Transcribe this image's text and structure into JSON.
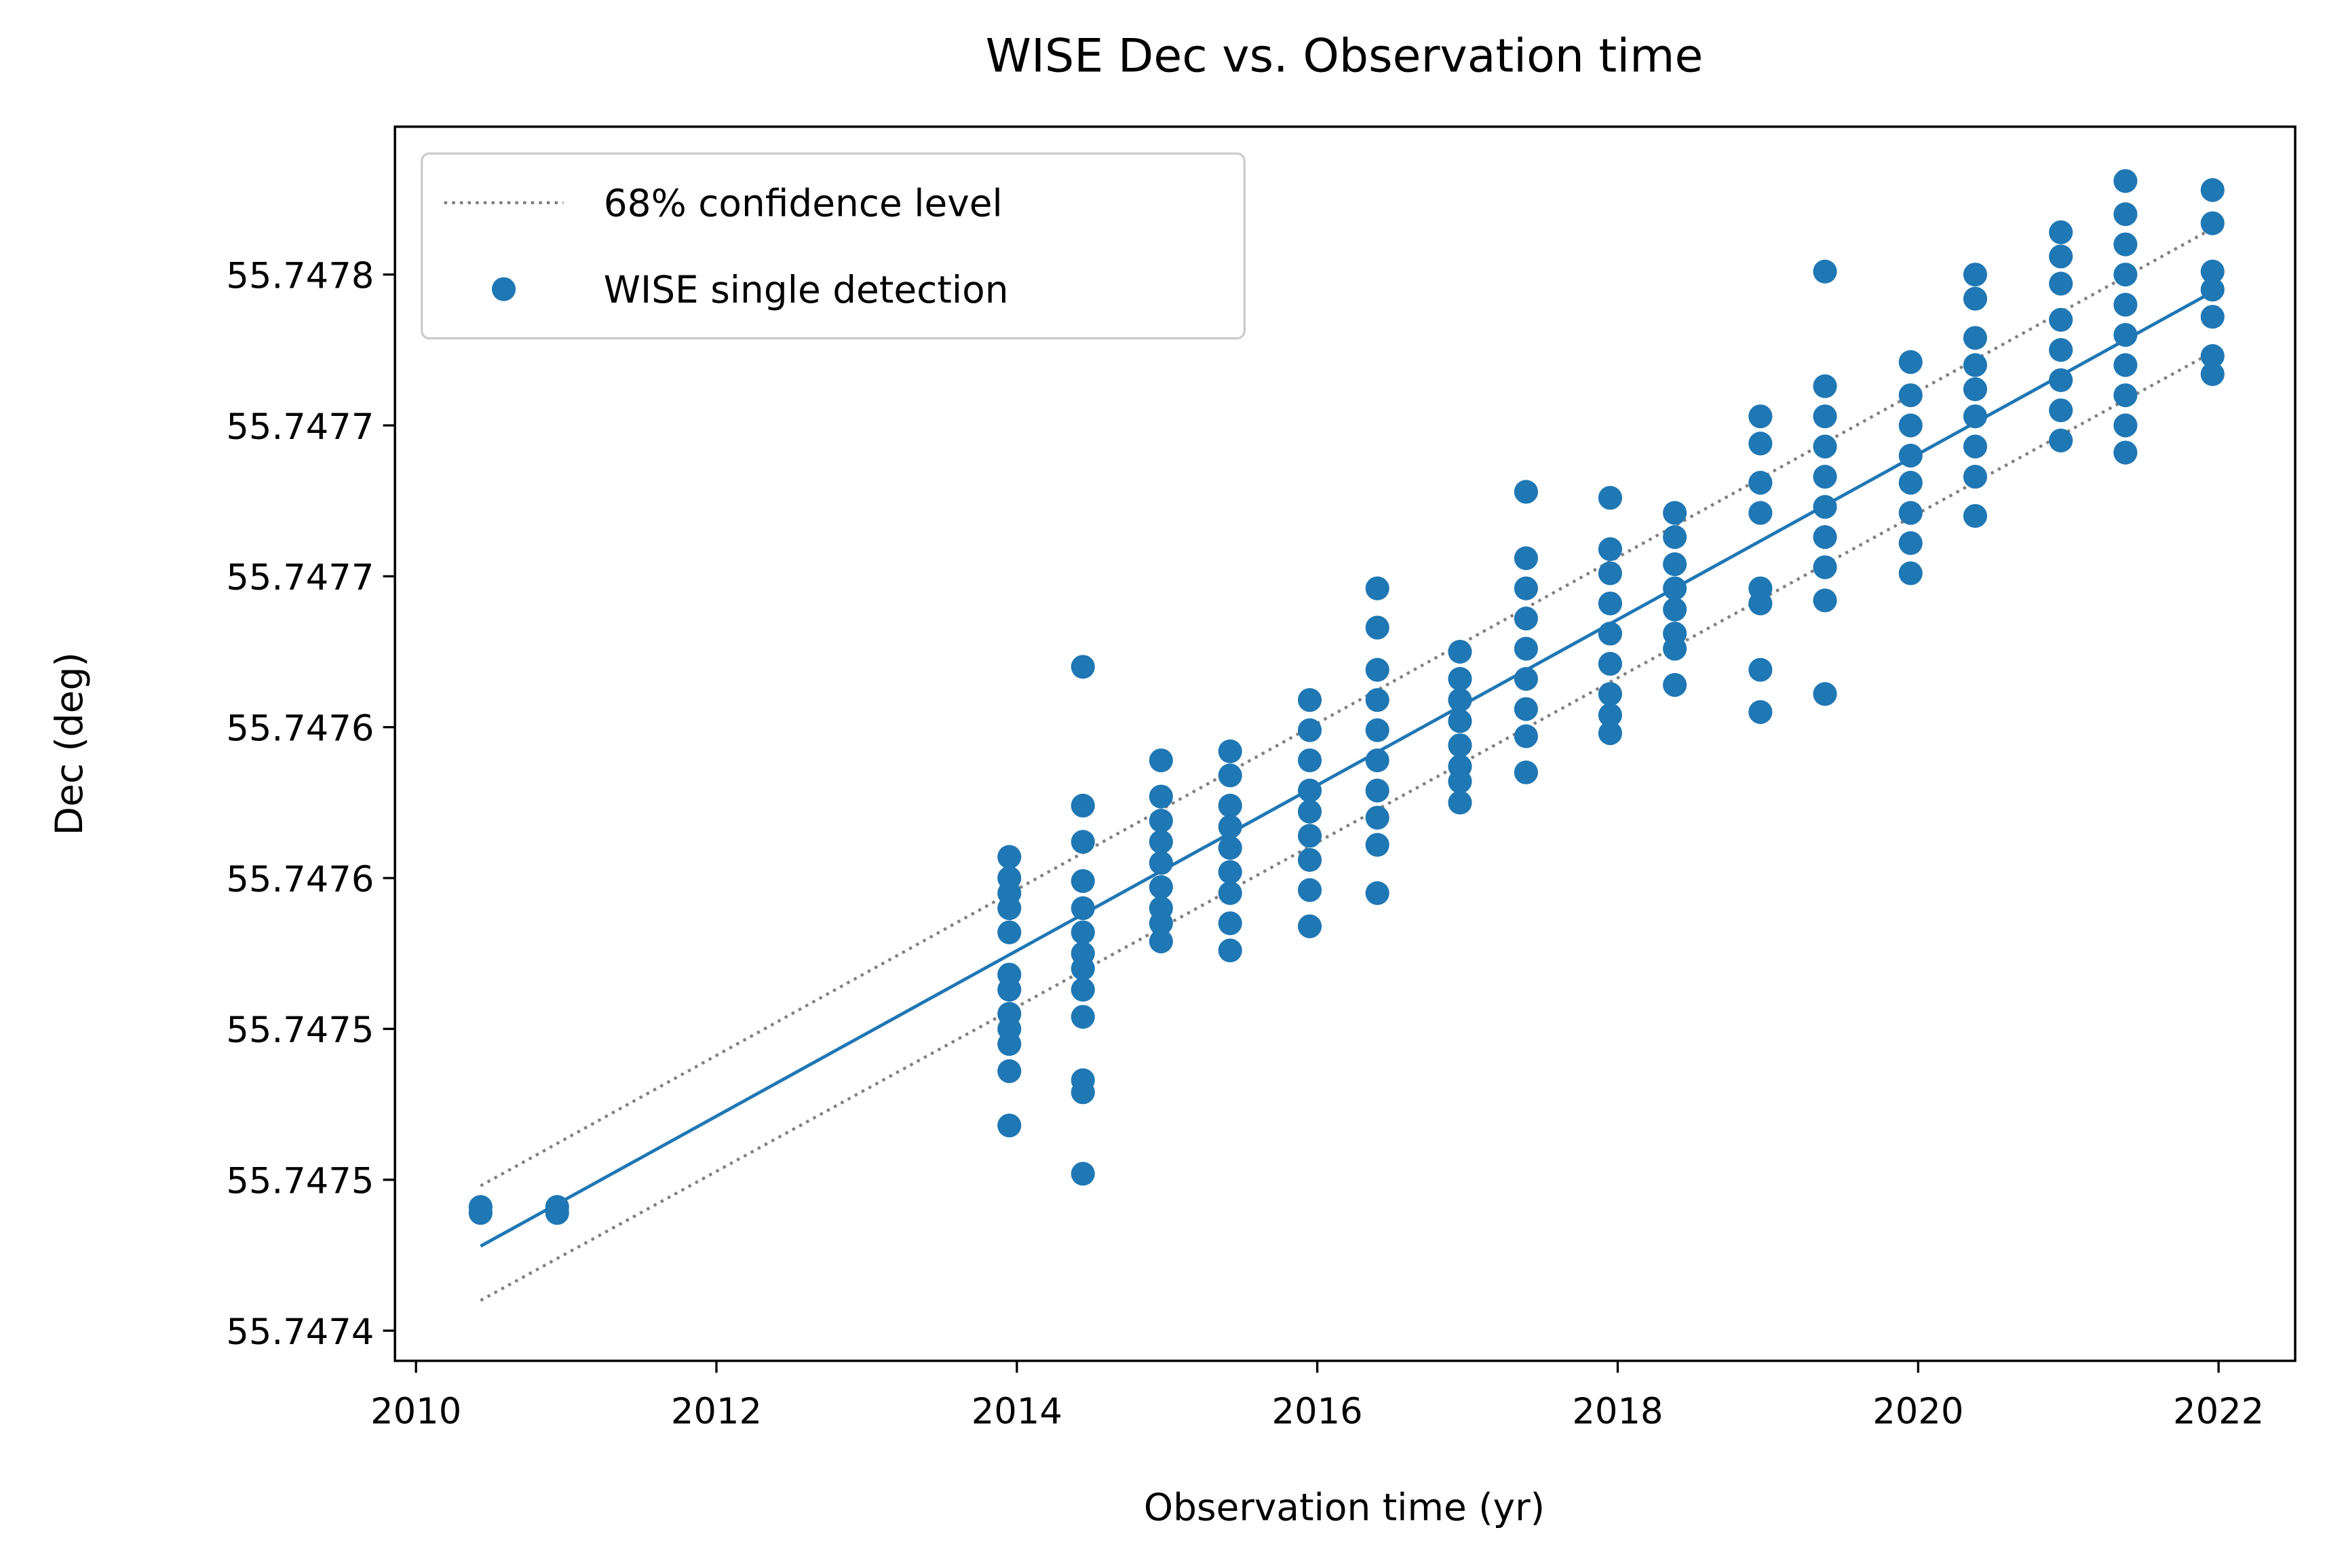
{
  "chart_data": {
    "type": "scatter",
    "title": "WISE Dec vs. Observation time",
    "x_label": "Observation time (yr)",
    "y_label": "Dec (deg)",
    "xlim": [
      2009.86,
      2022.51
    ],
    "ylim": [
      55.74739,
      55.747799
    ],
    "xticks": [
      2010,
      2012,
      2014,
      2016,
      2018,
      2020,
      2022
    ],
    "yticks": [
      {
        "value": 55.7474,
        "label": "55.7474"
      },
      {
        "value": 55.74745,
        "label": "55.7475"
      },
      {
        "value": 55.7475,
        "label": "55.7475"
      },
      {
        "value": 55.74755,
        "label": "55.7476"
      },
      {
        "value": 55.7476,
        "label": "55.7476"
      },
      {
        "value": 55.74765,
        "label": "55.7477"
      },
      {
        "value": 55.7477,
        "label": "55.7477"
      },
      {
        "value": 55.74775,
        "label": "55.7478"
      }
    ],
    "legend": "upper left",
    "fit": {
      "color": "#1f77b4",
      "x": [
        2010.43,
        2021.95
      ],
      "y": [
        55.747428,
        55.747744
      ]
    },
    "confidence": {
      "name": "68% confidence level",
      "color": "#808080",
      "x": [
        2010.43,
        2021.95
      ],
      "upper": [
        55.747448,
        55.747765
      ],
      "lower": [
        55.74741,
        55.747724
      ]
    },
    "scatter": {
      "name": "WISE single detection",
      "color": "#1f77b4",
      "x": [
        2010.43,
        2010.43,
        2010.94,
        2010.94,
        2013.95,
        2013.95,
        2013.95,
        2013.95,
        2013.95,
        2013.95,
        2013.95,
        2013.95,
        2013.95,
        2013.95,
        2013.95,
        2013.95,
        2014.44,
        2014.44,
        2014.44,
        2014.44,
        2014.44,
        2014.44,
        2014.44,
        2014.44,
        2014.44,
        2014.44,
        2014.44,
        2014.44,
        2014.44,
        2014.96,
        2014.96,
        2014.96,
        2014.96,
        2014.96,
        2014.96,
        2014.96,
        2014.96,
        2014.96,
        2015.42,
        2015.42,
        2015.42,
        2015.42,
        2015.42,
        2015.42,
        2015.42,
        2015.42,
        2015.42,
        2015.95,
        2015.95,
        2015.95,
        2015.95,
        2015.95,
        2015.95,
        2015.95,
        2015.95,
        2015.95,
        2016.4,
        2016.4,
        2016.4,
        2016.4,
        2016.4,
        2016.4,
        2016.4,
        2016.4,
        2016.4,
        2016.4,
        2016.95,
        2016.95,
        2016.95,
        2016.95,
        2016.95,
        2016.95,
        2016.95,
        2016.95,
        2017.39,
        2017.39,
        2017.39,
        2017.39,
        2017.39,
        2017.39,
        2017.39,
        2017.39,
        2017.39,
        2017.95,
        2017.95,
        2017.95,
        2017.95,
        2017.95,
        2017.95,
        2017.95,
        2017.95,
        2017.95,
        2018.38,
        2018.38,
        2018.38,
        2018.38,
        2018.38,
        2018.38,
        2018.38,
        2018.38,
        2018.95,
        2018.95,
        2018.95,
        2018.95,
        2018.95,
        2018.95,
        2018.95,
        2018.95,
        2019.38,
        2019.38,
        2019.38,
        2019.38,
        2019.38,
        2019.38,
        2019.38,
        2019.38,
        2019.38,
        2019.38,
        2019.95,
        2019.95,
        2019.95,
        2019.95,
        2019.95,
        2019.95,
        2019.95,
        2019.95,
        2020.38,
        2020.38,
        2020.38,
        2020.38,
        2020.38,
        2020.38,
        2020.38,
        2020.38,
        2020.38,
        2020.95,
        2020.95,
        2020.95,
        2020.95,
        2020.95,
        2020.95,
        2020.95,
        2020.95,
        2021.38,
        2021.38,
        2021.38,
        2021.38,
        2021.38,
        2021.38,
        2021.38,
        2021.38,
        2021.38,
        2021.38,
        2021.96,
        2021.96,
        2021.96,
        2021.96,
        2021.96,
        2021.96,
        2021.96
      ],
      "y": [
        55.747441,
        55.747439,
        55.747441,
        55.747439,
        55.747557,
        55.74755,
        55.747545,
        55.74754,
        55.747532,
        55.747518,
        55.747513,
        55.747505,
        55.7475,
        55.747495,
        55.747486,
        55.747468,
        55.74762,
        55.747574,
        55.747562,
        55.747549,
        55.74754,
        55.747532,
        55.747525,
        55.74752,
        55.747513,
        55.747504,
        55.747483,
        55.747479,
        55.747452,
        55.747589,
        55.747577,
        55.747569,
        55.747562,
        55.747555,
        55.747547,
        55.74754,
        55.747535,
        55.747529,
        55.747592,
        55.747584,
        55.747574,
        55.747567,
        55.74756,
        55.747552,
        55.747545,
        55.747535,
        55.747526,
        55.747609,
        55.747599,
        55.747589,
        55.747579,
        55.747572,
        55.747564,
        55.747556,
        55.747546,
        55.747534,
        55.747646,
        55.747633,
        55.747619,
        55.747609,
        55.747599,
        55.747589,
        55.747579,
        55.74757,
        55.747561,
        55.747545,
        55.747625,
        55.747616,
        55.747609,
        55.747602,
        55.747594,
        55.747587,
        55.747582,
        55.747575,
        55.747678,
        55.747656,
        55.747646,
        55.747636,
        55.747626,
        55.747616,
        55.747606,
        55.747597,
        55.747585,
        55.747676,
        55.747659,
        55.747651,
        55.747641,
        55.747631,
        55.747621,
        55.747611,
        55.747604,
        55.747598,
        55.747671,
        55.747663,
        55.747654,
        55.747646,
        55.747639,
        55.747631,
        55.747626,
        55.747614,
        55.747703,
        55.747694,
        55.747681,
        55.747671,
        55.747646,
        55.747641,
        55.747619,
        55.747605,
        55.747751,
        55.747713,
        55.747703,
        55.747693,
        55.747683,
        55.747673,
        55.747663,
        55.747653,
        55.747642,
        55.747611,
        55.747721,
        55.74771,
        55.7477,
        55.74769,
        55.747681,
        55.747671,
        55.747661,
        55.747651,
        55.74775,
        55.747742,
        55.747729,
        55.74772,
        55.747712,
        55.747703,
        55.747693,
        55.747683,
        55.74767,
        55.747764,
        55.747756,
        55.747747,
        55.747735,
        55.747725,
        55.747715,
        55.747705,
        55.747695,
        55.747781,
        55.74777,
        55.74776,
        55.74775,
        55.74774,
        55.74773,
        55.74772,
        55.74771,
        55.7477,
        55.747691,
        55.747778,
        55.747767,
        55.747751,
        55.747745,
        55.747736,
        55.747723,
        55.747717
      ]
    }
  }
}
